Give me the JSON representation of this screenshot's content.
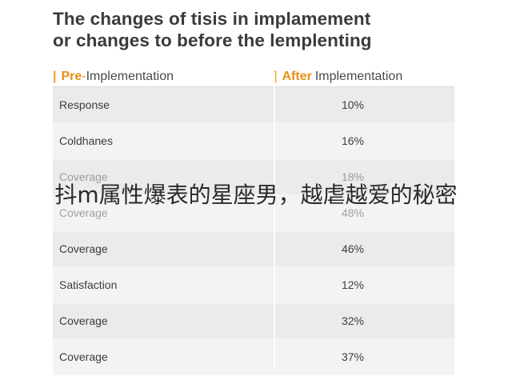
{
  "title": {
    "line1": "The changes of tisis in implamement",
    "line2": "or changes to before the lemplenting"
  },
  "header": {
    "left_bar": "|",
    "left_pre": "Pre",
    "left_dash": "-",
    "left_impl": "Implementation",
    "right_bar": "|",
    "right_after": "After",
    "right_impl": "Implementation"
  },
  "rows": [
    {
      "label": "Response",
      "value": "10%"
    },
    {
      "label": "Coldhanes",
      "value": "16%"
    },
    {
      "label": "Coverage",
      "value": "18%"
    },
    {
      "label": "Coverage",
      "value": "48%"
    },
    {
      "label": "Coverage",
      "value": "46%"
    },
    {
      "label": "Satisfaction",
      "value": "12%"
    },
    {
      "label": "Coverage",
      "value": "32%"
    },
    {
      "label": "Coverage",
      "value": "37%"
    }
  ],
  "overlay_text": "抖m属性爆表的星座男，越虐越爱的秘密",
  "colors": {
    "accent": "#e8901a",
    "row_light": "#f3f3f3",
    "row_dark": "#ebebeb"
  }
}
